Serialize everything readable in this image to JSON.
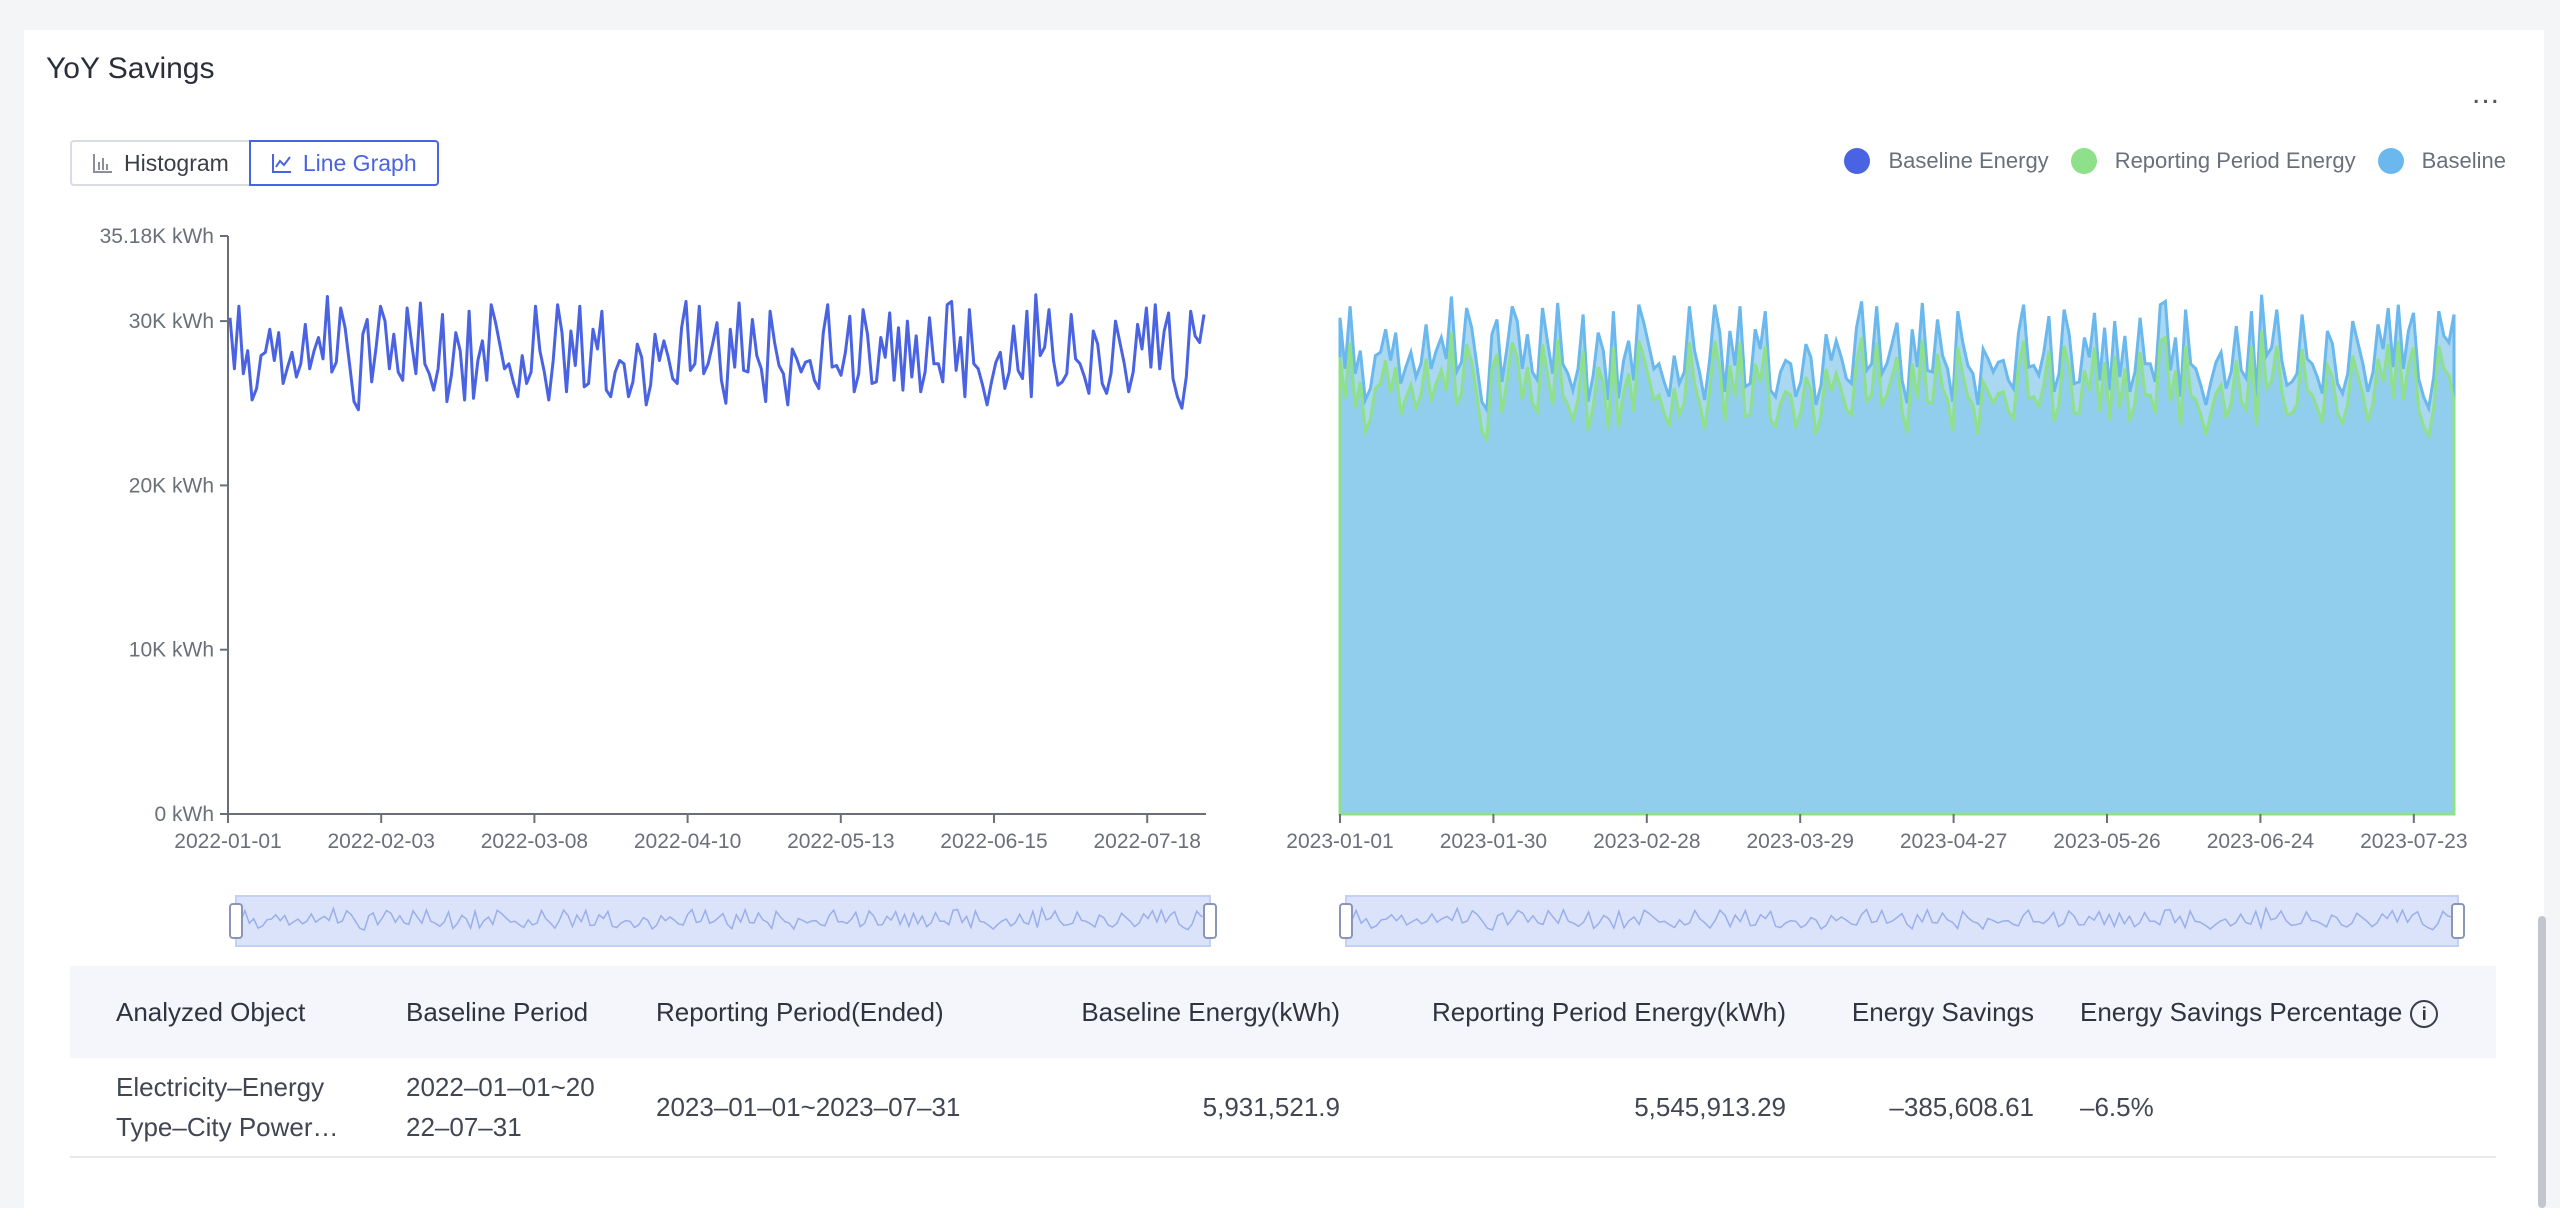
{
  "card": {
    "title": "YoY Savings",
    "more_label": "..."
  },
  "toggle": {
    "histogram_label": "Histogram",
    "line_graph_label": "Line Graph",
    "active": "Line Graph"
  },
  "legend": [
    {
      "name": "Baseline Energy",
      "color": "#4a63e3"
    },
    {
      "name": "Reporting Period Energy",
      "color": "#8ee08a"
    },
    {
      "name": "Baseline",
      "color": "#6ab8ee"
    }
  ],
  "chart_data": [
    {
      "type": "line",
      "series_name": "Baseline Energy",
      "x_range": [
        "2022-01-01",
        "2022-07-31"
      ],
      "x_ticks": [
        "2022-01-01",
        "2022-02-03",
        "2022-03-08",
        "2022-04-10",
        "2022-05-13",
        "2022-06-15",
        "2022-07-18"
      ],
      "y_ticks": [
        "0 kWh",
        "10K kWh",
        "20K kWh",
        "30K kWh",
        "35.18K kWh"
      ],
      "y_tick_values": [
        0,
        10000,
        20000,
        30000,
        35180
      ],
      "ylim": [
        0,
        35180
      ],
      "color": "#4a63e3",
      "values": [
        30200,
        27100,
        30900,
        26800,
        28200,
        25200,
        25900,
        27900,
        28100,
        29500,
        27600,
        29300,
        26200,
        27200,
        28100,
        26600,
        27400,
        29800,
        27100,
        28200,
        29000,
        27700,
        31500,
        26900,
        27500,
        30800,
        29600,
        27400,
        25100,
        24600,
        29200,
        30100,
        26300,
        28400,
        30900,
        30000,
        27100,
        29200,
        26900,
        26400,
        30800,
        28700,
        26800,
        31100,
        27400,
        26800,
        25800,
        27100,
        30400,
        25100,
        26700,
        29300,
        28200,
        25200,
        30600,
        25300,
        27600,
        28800,
        26400,
        31000,
        29900,
        28500,
        27100,
        27400,
        26300,
        25400,
        27900,
        26200,
        26900,
        30900,
        28200,
        26900,
        25200,
        27600,
        31000,
        29300,
        25700,
        29400,
        27300,
        30900,
        26000,
        26200,
        29500,
        28300,
        30600,
        25800,
        25400,
        26900,
        27600,
        27400,
        25400,
        26300,
        28600,
        27800,
        24900,
        26100,
        29200,
        27600,
        28800,
        27800,
        26500,
        26200,
        29600,
        31200,
        27000,
        27400,
        30900,
        26800,
        27400,
        28600,
        29900,
        26400,
        25000,
        29500,
        27200,
        31100,
        27000,
        26900,
        30100,
        27900,
        27100,
        25100,
        30600,
        28700,
        27300,
        26800,
        24900,
        28300,
        27700,
        26900,
        27500,
        27600,
        26400,
        25900,
        29300,
        31000,
        27200,
        27300,
        26700,
        28100,
        30300,
        25700,
        26800,
        30700,
        29200,
        26200,
        26300,
        29000,
        27800,
        30500,
        26400,
        29600,
        25800,
        30000,
        26600,
        29100,
        25700,
        26900,
        30200,
        27400,
        27400,
        26300,
        31000,
        31200,
        27000,
        29000,
        25400,
        30700,
        27400,
        27100,
        26100,
        24900,
        26300,
        27500,
        28100,
        25900,
        26900,
        29700,
        27000,
        26500,
        30600,
        25400,
        31600,
        27900,
        28400,
        30700,
        27600,
        26100,
        26300,
        26800,
        30400,
        27700,
        27400,
        26600,
        25600,
        29400,
        28600,
        26200,
        25600,
        26800,
        30000,
        28700,
        27400,
        25700,
        26900,
        29800,
        28300,
        30800,
        27200,
        31000,
        27100,
        29400,
        30500,
        26500,
        25400,
        24700,
        26600,
        30600,
        29100,
        28700,
        30400
      ],
      "data_zoom": {
        "start": 0,
        "end": 100
      }
    },
    {
      "type": "area",
      "series": [
        {
          "name": "Baseline",
          "color": "#6ab8ee"
        },
        {
          "name": "Reporting Period Energy",
          "color": "#8ee08a"
        }
      ],
      "x_range": [
        "2023-01-01",
        "2023-07-31"
      ],
      "x_ticks": [
        "2023-01-01",
        "2023-01-30",
        "2023-02-28",
        "2023-03-29",
        "2023-04-27",
        "2023-05-26",
        "2023-06-24",
        "2023-07-23"
      ],
      "ylim": [
        0,
        35180
      ],
      "baseline_values": [
        30200,
        27100,
        30900,
        26800,
        28200,
        25200,
        25900,
        27900,
        28100,
        29500,
        27600,
        29300,
        26200,
        27200,
        28100,
        26600,
        27400,
        29800,
        27100,
        28200,
        29000,
        27700,
        31500,
        26900,
        27500,
        30800,
        29600,
        27400,
        25100,
        24600,
        29200,
        30100,
        26300,
        28400,
        30900,
        30000,
        27100,
        29200,
        26900,
        26400,
        30800,
        28700,
        26800,
        31100,
        27400,
        26800,
        25800,
        27100,
        30400,
        25100,
        26700,
        29300,
        28200,
        25200,
        30600,
        25300,
        27600,
        28800,
        26400,
        31000,
        29900,
        28500,
        27100,
        27400,
        26300,
        25400,
        27900,
        26200,
        26900,
        30900,
        28200,
        26900,
        25200,
        27600,
        31000,
        29300,
        25700,
        29400,
        27300,
        30900,
        26000,
        26200,
        29500,
        28300,
        30600,
        25800,
        25400,
        26900,
        27600,
        27400,
        25400,
        26300,
        28600,
        27800,
        24900,
        26100,
        29200,
        27600,
        28800,
        27800,
        26500,
        26200,
        29600,
        31200,
        27000,
        27400,
        30900,
        26800,
        27400,
        28600,
        29900,
        26400,
        25000,
        29500,
        27200,
        31100,
        27000,
        26900,
        30100,
        27900,
        27100,
        25100,
        30600,
        28700,
        27300,
        26800,
        24900,
        28300,
        27700,
        26900,
        27500,
        27600,
        26400,
        25900,
        29300,
        31000,
        27200,
        27300,
        26700,
        28100,
        30300,
        25700,
        26800,
        30700,
        29200,
        26200,
        26300,
        29000,
        27800,
        30500,
        26400,
        29600,
        25800,
        30000,
        26600,
        29100,
        25700,
        26900,
        30200,
        27400,
        27400,
        26300,
        31000,
        31200,
        27000,
        29000,
        25400,
        30700,
        27400,
        27100,
        26100,
        24900,
        26300,
        27500,
        28100,
        25900,
        26900,
        29700,
        27000,
        26500,
        30600,
        25400,
        31600,
        27900,
        28400,
        30700,
        27600,
        26100,
        26300,
        26800,
        30400,
        27700,
        27400,
        26600,
        25600,
        29400,
        28600,
        26200,
        25600,
        26800,
        30000,
        28700,
        27400,
        25700,
        26900,
        29800,
        28300,
        30800,
        27200,
        31000,
        27100,
        29400,
        30500,
        26500,
        25400,
        24700,
        26600,
        30600,
        29100,
        28700,
        30400
      ],
      "reporting_values": [
        27800,
        25300,
        28700,
        24700,
        26300,
        23300,
        24000,
        25900,
        26200,
        27600,
        25600,
        27200,
        24300,
        25300,
        26100,
        24700,
        25500,
        27700,
        25100,
        26200,
        27000,
        25700,
        29300,
        24900,
        25600,
        28600,
        27500,
        25500,
        23300,
        22800,
        27100,
        28000,
        24400,
        26400,
        28700,
        27800,
        25200,
        27200,
        25000,
        24500,
        28600,
        26700,
        24900,
        28900,
        25500,
        24900,
        24000,
        25200,
        28200,
        23300,
        24800,
        27200,
        26200,
        23400,
        28400,
        23500,
        25700,
        26800,
        24500,
        28800,
        27800,
        26500,
        25200,
        25500,
        24400,
        23600,
        25900,
        24300,
        25000,
        28700,
        26200,
        25000,
        23400,
        25700,
        28800,
        27200,
        23900,
        27300,
        25400,
        28700,
        24200,
        24300,
        27400,
        26300,
        28500,
        24000,
        23600,
        25000,
        25700,
        25500,
        23600,
        24400,
        26600,
        25800,
        23100,
        24300,
        27100,
        25700,
        26800,
        25800,
        24600,
        24300,
        27500,
        29000,
        25100,
        25500,
        28700,
        24900,
        25500,
        26600,
        27800,
        24500,
        23200,
        27400,
        25300,
        28900,
        25100,
        25000,
        28000,
        25900,
        25200,
        23300,
        28400,
        26700,
        25400,
        24900,
        23100,
        26300,
        25700,
        25000,
        25600,
        25700,
        24500,
        24100,
        27200,
        28800,
        25300,
        25400,
        24800,
        26100,
        28200,
        23900,
        24900,
        28500,
        27200,
        24400,
        24400,
        27000,
        25800,
        28400,
        24500,
        27500,
        24000,
        27900,
        24700,
        27100,
        23900,
        25000,
        28100,
        25500,
        25500,
        24400,
        28800,
        29000,
        25100,
        27000,
        23600,
        28500,
        25500,
        25200,
        24300,
        23100,
        24400,
        25600,
        26100,
        24100,
        25000,
        27600,
        25100,
        24600,
        28500,
        23600,
        29400,
        25900,
        26400,
        28500,
        25700,
        24300,
        24400,
        24900,
        28300,
        25800,
        25500,
        24700,
        23800,
        27300,
        26600,
        24400,
        23800,
        24900,
        27900,
        26700,
        25500,
        23900,
        25000,
        27700,
        26300,
        28600,
        25300,
        28800,
        25200,
        27300,
        28400,
        24600,
        23600,
        23000,
        24700,
        28500,
        27100,
        26700,
        25200
      ],
      "data_zoom": {
        "start": 0,
        "end": 100
      }
    }
  ],
  "table": {
    "headers": [
      "Analyzed Object",
      "Baseline Period",
      "Reporting Period(Ended)",
      "Baseline Energy(kWh)",
      "Reporting Period Energy(kWh)",
      "Energy Savings",
      "Energy Savings Percentage"
    ],
    "info_icon": "i",
    "rows": [
      {
        "object_line1": "Electricity–Energy",
        "object_line2": "Type–City Power…",
        "baseline_line1": "2022–01–01~20",
        "baseline_line2": "22–07–31",
        "reporting": "2023–01–01~2023–07–31",
        "baseline_energy": "5,931,521.9",
        "reporting_energy": "5,545,913.29",
        "savings": "–385,608.61",
        "percentage": "–6.5%"
      }
    ]
  }
}
